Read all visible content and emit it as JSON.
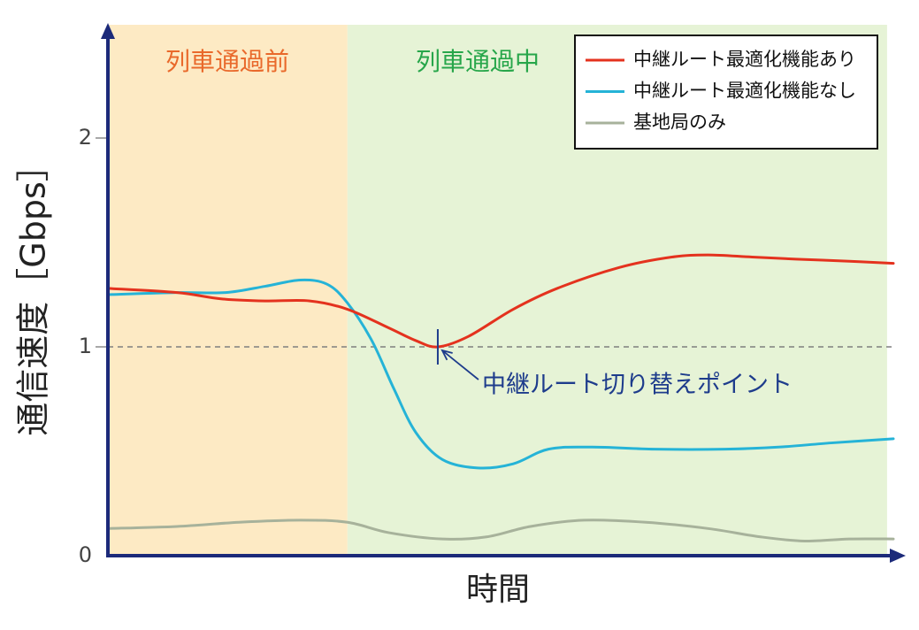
{
  "chart_data": {
    "type": "line",
    "title": "",
    "xlabel": "時間",
    "ylabel": "通信速度［Gbps］",
    "xlim": [
      0,
      100
    ],
    "ylim": [
      0,
      2.5
    ],
    "yticks": [
      0,
      1,
      2
    ],
    "ytick_labels": [
      "0",
      "1",
      "2"
    ],
    "grid": false,
    "legend_position": "top-right",
    "axis_color": "#1c2a7a",
    "reference_line": {
      "y": 1
    },
    "regions": [
      {
        "label": "列車通過前",
        "x_start": 0,
        "x_end": 30.5,
        "fill": "#fdeac4",
        "label_color": "#e9692b"
      },
      {
        "label": "列車通過中",
        "x_start": 30.5,
        "x_end": 99.2,
        "fill": "#e6f3d6",
        "label_color": "#27a64a"
      }
    ],
    "series": [
      {
        "name": "中継ルート最適化機能あり",
        "color": "#e4321e",
        "x": [
          0,
          8.8,
          14.4,
          20,
          25.7,
          30.5,
          35.8,
          39.2,
          42,
          45.9,
          51.6,
          57.2,
          65.1,
          71.8,
          76.4,
          82,
          87.6,
          94.4,
          100
        ],
        "y": [
          1.28,
          1.26,
          1.23,
          1.22,
          1.22,
          1.18,
          1.09,
          1.03,
          1.0,
          1.05,
          1.18,
          1.28,
          1.38,
          1.43,
          1.44,
          1.43,
          1.42,
          1.41,
          1.4
        ]
      },
      {
        "name": "中継ルート最適化機能なし",
        "color": "#25b3d7",
        "x": [
          0,
          8.8,
          15,
          20,
          24.5,
          27.9,
          30.5,
          33.6,
          36.4,
          39.2,
          42.6,
          47.1,
          51.6,
          56.1,
          61.7,
          69.6,
          78.6,
          85.4,
          92.1,
          100
        ],
        "y": [
          1.25,
          1.26,
          1.26,
          1.29,
          1.32,
          1.3,
          1.21,
          1.03,
          0.8,
          0.59,
          0.46,
          0.42,
          0.44,
          0.51,
          0.52,
          0.51,
          0.51,
          0.52,
          0.54,
          0.56
        ]
      },
      {
        "name": "基地局のみ",
        "color": "#a7b29b",
        "x": [
          0,
          8.8,
          16.7,
          24.5,
          30.5,
          35.8,
          42.6,
          48.2,
          53.8,
          60.6,
          68.5,
          76.4,
          83.1,
          88.7,
          94.4,
          100
        ],
        "y": [
          0.13,
          0.14,
          0.16,
          0.17,
          0.16,
          0.11,
          0.08,
          0.09,
          0.14,
          0.17,
          0.16,
          0.13,
          0.09,
          0.07,
          0.08,
          0.08
        ]
      }
    ],
    "annotation": {
      "text": "中継ルート切り替えポイント",
      "x": 42,
      "y": 1.0,
      "color": "#1e3c8c"
    }
  }
}
